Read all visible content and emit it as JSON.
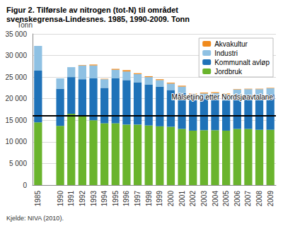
{
  "chart_data": {
    "type": "bar",
    "stacked": true,
    "title": "Figur 2. Tilførsle av nitrogen (tot-N) til området svenskegrensa-Lindesnes. 1985, 1990-2009. Tonn",
    "y_label": "Tonn",
    "source": "Kjelde: NIVA (2010).",
    "categories": [
      "1985",
      null,
      "1990",
      "1991",
      "1992",
      "1993",
      "1994",
      "1995",
      "1996",
      "1997",
      "1998",
      "1999",
      "2000",
      "2001",
      "2002",
      "2003",
      "2004",
      "2005",
      "2006",
      "2007",
      "2008",
      "2009"
    ],
    "series": [
      {
        "name": "Jordbruk",
        "color": "#6ab42d",
        "values": [
          14500,
          null,
          13700,
          16500,
          16000,
          15000,
          14300,
          14300,
          14000,
          14000,
          13800,
          13600,
          13500,
          13000,
          12600,
          12700,
          12700,
          12600,
          13000,
          13000,
          12800,
          12800
        ]
      },
      {
        "name": "Kommunalt avløp",
        "color": "#1f72b8",
        "values": [
          12000,
          null,
          8600,
          8500,
          8500,
          9700,
          8200,
          10400,
          10300,
          9800,
          9500,
          9200,
          8500,
          8300,
          7100,
          7200,
          7400,
          7000,
          7900,
          7900,
          8000,
          8200
        ]
      },
      {
        "name": "Industri",
        "color": "#8fc1e3",
        "values": [
          5700,
          null,
          2400,
          2300,
          3200,
          3000,
          2000,
          2000,
          2000,
          1900,
          1700,
          1500,
          1500,
          1500,
          1300,
          1300,
          1200,
          1400,
          1200,
          1300,
          1400,
          1400
        ]
      },
      {
        "name": "Akvakultur",
        "color": "#f08a1c",
        "values": [
          0,
          null,
          0,
          0,
          100,
          200,
          100,
          200,
          300,
          200,
          200,
          200,
          200,
          200,
          200,
          200,
          200,
          200,
          100,
          100,
          100,
          100
        ]
      }
    ],
    "target": {
      "value": 16000,
      "label": "Målsetjing etter Nordsjøavtalane"
    },
    "ylim": [
      0,
      35000
    ],
    "yticks": [
      0,
      {
        "value": 5000,
        "label": "5 000"
      },
      {
        "value": 10000,
        "label": "10 000"
      },
      {
        "value": 15000,
        "label": "15 000"
      },
      {
        "value": 20000,
        "label": "20 000"
      },
      {
        "value": 25000,
        "label": "25 000"
      },
      {
        "value": 30000,
        "label": "30 000"
      },
      {
        "value": 35000,
        "label": "35 000"
      }
    ],
    "grid": true,
    "legend": "upper right"
  }
}
